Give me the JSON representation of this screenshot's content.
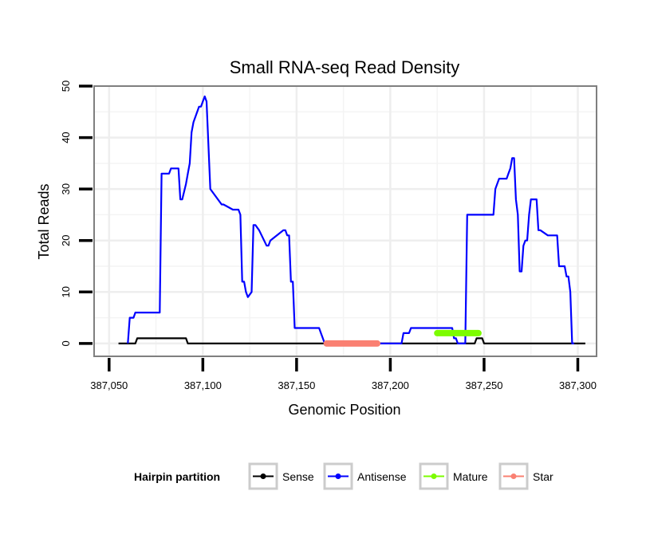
{
  "chart_data": {
    "type": "line",
    "title": "Small RNA-seq Read Density",
    "xlabel": "Genomic Position",
    "ylabel": "Total Reads",
    "xlim": [
      387042,
      387310
    ],
    "ylim": [
      -2.5,
      50
    ],
    "x_ticks": [
      387050,
      387100,
      387150,
      387200,
      387250,
      387300
    ],
    "x_tick_labels": [
      "387,050",
      "387,100",
      "387,150",
      "387,200",
      "387,250",
      "387,300"
    ],
    "y_ticks": [
      0,
      10,
      20,
      30,
      40,
      50
    ],
    "y_tick_labels": [
      "0",
      "10",
      "20",
      "30",
      "40",
      "50"
    ],
    "grid": true,
    "legend_position": "bottom",
    "legend_title": "Hairpin partition",
    "series": [
      {
        "name": "Sense",
        "color": "#000000",
        "x": [
          387055,
          387064,
          387065,
          387091,
          387092,
          387245,
          387246,
          387249,
          387250,
          387304
        ],
        "y": [
          0,
          0,
          1,
          1,
          0,
          0,
          1,
          1,
          0,
          0
        ]
      },
      {
        "name": "Antisense",
        "color": "#0000ff",
        "x": [
          387060,
          387061,
          387063,
          387064,
          387077,
          387078,
          387082,
          387083,
          387087,
          387088,
          387089,
          387091,
          387092,
          387093,
          387094,
          387095,
          387098,
          387099,
          387100,
          387101,
          387102,
          387104,
          387110,
          387111,
          387116,
          387117,
          387118,
          387119,
          387120,
          387121,
          387122,
          387123,
          387124,
          387126,
          387127,
          387128,
          387130,
          387134,
          387135,
          387136,
          387143,
          387144,
          387145,
          387146,
          387147,
          387148,
          387149,
          387150,
          387151,
          387152,
          387153,
          387154,
          387155,
          387156,
          387157,
          387158,
          387159,
          387160,
          387161,
          387162,
          387163,
          387164,
          387165,
          387206,
          387207,
          387208,
          387210,
          387211,
          387212,
          387213,
          387214,
          387215,
          387216,
          387217,
          387218,
          387219,
          387220,
          387221,
          387222,
          387223,
          387224,
          387225,
          387226,
          387227,
          387228,
          387229,
          387230,
          387231,
          387232,
          387233,
          387234,
          387235,
          387236,
          387237,
          387238,
          387239,
          387240,
          387241,
          387242,
          387243,
          387244,
          387255,
          387256,
          387257,
          387258,
          387259,
          387260,
          387261,
          387262,
          387263,
          387264,
          387265,
          387266,
          387267,
          387268,
          387269,
          387270,
          387271,
          387272,
          387273,
          387274,
          387275,
          387276,
          387277,
          387278,
          387279,
          387280,
          387284,
          387285,
          387288,
          387289,
          387290,
          387291,
          387292,
          387293,
          387294,
          387295,
          387296,
          387297,
          387298
        ],
        "y": [
          0,
          5,
          5,
          6,
          6,
          33,
          33,
          34,
          34,
          28,
          28,
          31,
          33,
          35,
          41,
          43,
          46,
          46,
          47,
          48,
          47,
          30,
          27,
          27,
          26,
          26,
          26,
          26,
          25,
          12,
          12,
          10,
          9,
          10,
          23,
          23,
          22,
          19,
          19,
          20,
          22,
          22,
          21,
          21,
          12,
          12,
          3,
          3,
          3,
          3,
          3,
          3,
          3,
          3,
          3,
          3,
          3,
          3,
          3,
          3,
          2,
          1,
          0,
          0,
          2,
          2,
          2,
          3,
          3,
          3,
          3,
          3,
          3,
          3,
          3,
          3,
          3,
          3,
          3,
          3,
          3,
          3,
          3,
          3,
          3,
          3,
          3,
          3,
          3,
          3,
          1,
          1,
          0,
          0,
          0,
          0,
          0,
          25,
          25,
          25,
          25,
          25,
          30,
          31,
          32,
          32,
          32,
          32,
          32,
          33,
          34,
          36,
          36,
          28,
          25,
          14,
          14,
          19,
          20,
          20,
          25,
          28,
          28,
          28,
          28,
          22,
          22,
          21,
          21,
          21,
          21,
          15,
          15,
          15,
          15,
          13,
          13,
          10,
          0,
          0
        ]
      },
      {
        "name": "Mature",
        "color": "#7cfc00",
        "x": [
          387225,
          387247
        ],
        "y": [
          2,
          2
        ]
      },
      {
        "name": "Star",
        "color": "#fa8072",
        "x": [
          387166,
          387193
        ],
        "y": [
          0,
          0
        ]
      }
    ]
  }
}
